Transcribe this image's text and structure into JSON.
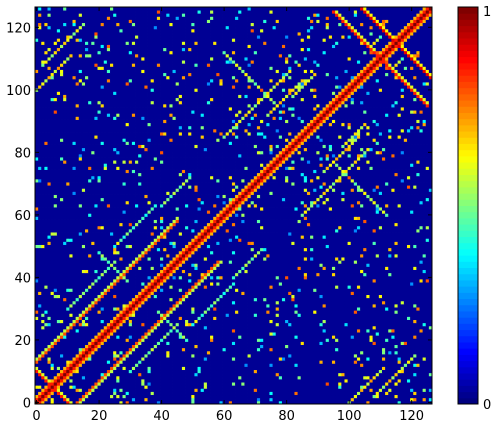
{
  "chart_data": {
    "type": "heatmap",
    "title": "",
    "xlabel": "",
    "ylabel": "",
    "xlim": [
      0,
      126
    ],
    "ylim": [
      0,
      126
    ],
    "x_ticks": [
      "0",
      "20",
      "40",
      "60",
      "80",
      "100",
      "120"
    ],
    "y_ticks": [
      "0",
      "20",
      "40",
      "60",
      "80",
      "100",
      "120"
    ],
    "tick_values": [
      0,
      20,
      40,
      60,
      80,
      100,
      120
    ],
    "colorbar": {
      "min_label": "0",
      "max_label": "1",
      "min": 0,
      "max": 1,
      "colormap": "jet"
    },
    "background_value": 0.02,
    "matrix_size": 127,
    "symmetric": true,
    "description_note_removed": "",
    "features": {
      "main_diagonal": {
        "i_range": [
          0,
          126
        ],
        "value": 1.0,
        "band_width": 2
      },
      "antidiagonal_bands": [
        {
          "i_start": 0,
          "j_start": 10,
          "length": 42,
          "direction": "+-",
          "value": 0.85
        },
        {
          "i_start": 13,
          "j_start": 0,
          "length": 46,
          "direction": "++",
          "value": 0.8
        },
        {
          "i_start": 104,
          "j_start": 126,
          "length": 22,
          "direction": "+-",
          "value": 0.9
        },
        {
          "i_start": 95,
          "j_start": 125,
          "length": 28,
          "direction": "+-",
          "value": 0.85
        }
      ],
      "offdiagonal_segments": [
        {
          "i_start": 0,
          "j_start": 100,
          "length": 12,
          "di": 1,
          "dj": 1,
          "value": 0.75
        },
        {
          "i_start": 2,
          "j_start": 108,
          "length": 14,
          "di": 1,
          "dj": 1,
          "value": 0.7
        },
        {
          "i_start": 60,
          "j_start": 112,
          "length": 18,
          "di": 1,
          "dj": -1,
          "value": 0.65
        },
        {
          "i_start": 85,
          "j_start": 60,
          "length": 22,
          "di": 1,
          "dj": 1,
          "value": 0.7
        },
        {
          "i_start": 92,
          "j_start": 74,
          "length": 12,
          "di": 1,
          "dj": 1,
          "value": 0.75
        },
        {
          "i_start": 10,
          "j_start": 30,
          "length": 16,
          "di": 1,
          "dj": 1,
          "value": 0.6
        },
        {
          "i_start": 50,
          "j_start": 25,
          "length": 14,
          "di": 1,
          "dj": 1,
          "value": 0.55
        },
        {
          "i_start": 63,
          "j_start": 40,
          "length": 10,
          "di": 1,
          "dj": 1,
          "value": 0.6
        },
        {
          "i_start": 98,
          "j_start": 82,
          "length": 8,
          "di": 1,
          "dj": 1,
          "value": 0.7
        },
        {
          "i_start": 20,
          "j_start": 48,
          "length": 10,
          "di": 1,
          "dj": -1,
          "value": 0.6
        }
      ],
      "noise_density": 0.035,
      "noise_seed": 7
    }
  }
}
